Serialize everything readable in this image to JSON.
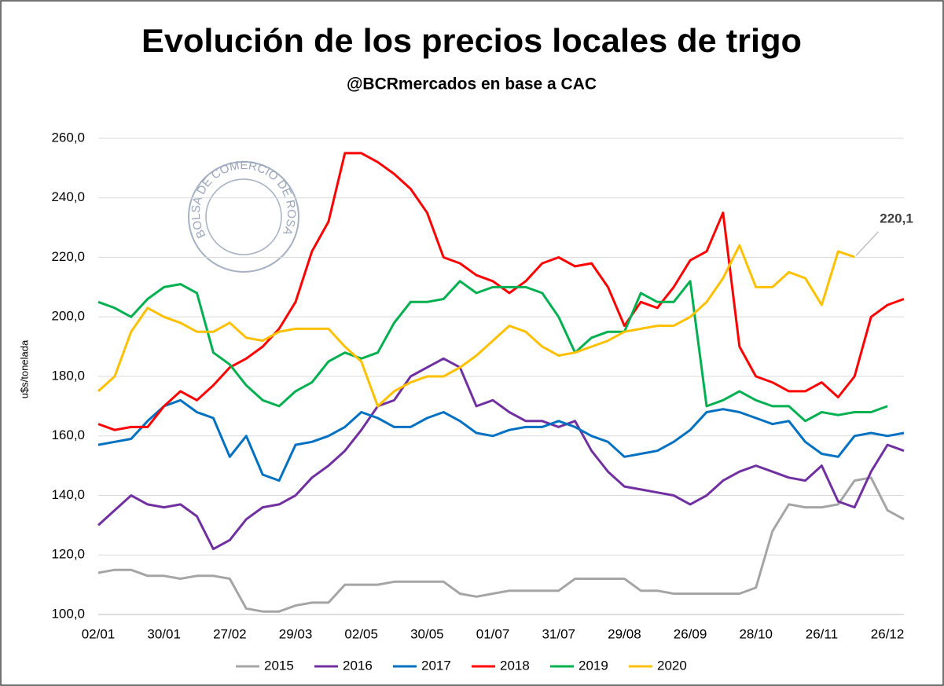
{
  "chart_data": {
    "type": "line",
    "title": "Evolución de los precios locales de trigo",
    "subtitle": "@BCRmercados en base a CAC",
    "y_label": "u$s/tonelada",
    "watermark": "BOLSA DE COMERCIO DE ROSARIO",
    "categories": [
      "02/01",
      null,
      null,
      null,
      "30/01",
      null,
      null,
      null,
      "27/02",
      null,
      null,
      null,
      "29/03",
      null,
      null,
      null,
      "02/05",
      null,
      null,
      null,
      "30/05",
      null,
      null,
      null,
      "01/07",
      null,
      null,
      null,
      "31/07",
      null,
      null,
      null,
      "29/08",
      null,
      null,
      null,
      "26/09",
      null,
      null,
      null,
      "28/10",
      null,
      null,
      null,
      "26/11",
      null,
      null,
      null,
      "26/12",
      null
    ],
    "ylim": [
      100,
      260
    ],
    "yticks": [
      {
        "value": 100,
        "label": "100,0"
      },
      {
        "value": 120,
        "label": "120,0"
      },
      {
        "value": 140,
        "label": "140,0"
      },
      {
        "value": 160,
        "label": "160,0"
      },
      {
        "value": 180,
        "label": "180,0"
      },
      {
        "value": 200,
        "label": "200,0"
      },
      {
        "value": 220,
        "label": "220,0"
      },
      {
        "value": 240,
        "label": "240,0"
      },
      {
        "value": 260,
        "label": "260,0"
      }
    ],
    "grid": true,
    "legend": "bottom",
    "series": [
      {
        "name": "2015",
        "color": "#a5a5a5",
        "values": [
          114,
          115,
          115,
          113,
          113,
          112,
          113,
          113,
          112,
          102,
          101,
          101,
          103,
          104,
          104,
          110,
          110,
          110,
          111,
          111,
          111,
          111,
          107,
          106,
          107,
          108,
          108,
          108,
          108,
          112,
          112,
          112,
          112,
          108,
          108,
          107,
          107,
          107,
          107,
          107,
          109,
          128,
          137,
          136,
          136,
          137,
          145,
          146,
          135,
          132
        ]
      },
      {
        "name": "2016",
        "color": "#7030a0",
        "values": [
          130,
          135,
          140,
          137,
          136,
          137,
          133,
          122,
          125,
          132,
          136,
          137,
          140,
          146,
          150,
          155,
          162,
          170,
          172,
          180,
          183,
          186,
          183,
          170,
          172,
          168,
          165,
          165,
          163,
          165,
          155,
          148,
          143,
          142,
          141,
          140,
          137,
          140,
          145,
          148,
          150,
          148,
          146,
          145,
          150,
          138,
          136,
          148,
          157,
          155
        ]
      },
      {
        "name": "2017",
        "color": "#0070c0",
        "values": [
          157,
          158,
          159,
          165,
          170,
          172,
          168,
          166,
          153,
          160,
          147,
          145,
          157,
          158,
          160,
          163,
          168,
          166,
          163,
          163,
          166,
          168,
          165,
          161,
          160,
          162,
          163,
          163,
          165,
          163,
          160,
          158,
          153,
          154,
          155,
          158,
          162,
          168,
          169,
          168,
          166,
          164,
          165,
          158,
          154,
          153,
          160,
          161,
          160,
          161
        ]
      },
      {
        "name": "2018",
        "color": "#ff0000",
        "values": [
          164,
          162,
          163,
          163,
          170,
          175,
          172,
          177,
          183,
          186,
          190,
          196,
          205,
          222,
          232,
          255,
          255,
          252,
          248,
          243,
          235,
          220,
          218,
          214,
          212,
          208,
          212,
          218,
          220,
          217,
          218,
          210,
          197,
          205,
          203,
          210,
          219,
          222,
          235,
          190,
          180,
          178,
          175,
          175,
          178,
          173,
          180,
          200,
          204,
          206
        ]
      },
      {
        "name": "2019",
        "color": "#00b050",
        "values": [
          205,
          203,
          200,
          206,
          210,
          211,
          208,
          188,
          184,
          177,
          172,
          170,
          175,
          178,
          185,
          188,
          186,
          188,
          198,
          205,
          205,
          206,
          212,
          208,
          210,
          210,
          210,
          208,
          200,
          188,
          193,
          195,
          195,
          208,
          205,
          205,
          212,
          170,
          172,
          175,
          172,
          170,
          170,
          165,
          168,
          167,
          168,
          168,
          170,
          null
        ]
      },
      {
        "name": "2020",
        "color": "#ffc000",
        "values": [
          175,
          180,
          195,
          203,
          200,
          198,
          195,
          195,
          198,
          193,
          192,
          195,
          196,
          196,
          196,
          190,
          185,
          170,
          175,
          178,
          180,
          180,
          183,
          187,
          192,
          197,
          195,
          190,
          187,
          188,
          190,
          192,
          195,
          196,
          197,
          197,
          200,
          205,
          213,
          224,
          210,
          210,
          215,
          213,
          204,
          222,
          220.1,
          null,
          null,
          null
        ],
        "value_labels": [
          null,
          null,
          null,
          null,
          null,
          null,
          null,
          null,
          null,
          null,
          null,
          null,
          null,
          null,
          null,
          null,
          null,
          null,
          null,
          null,
          null,
          null,
          null,
          null,
          null,
          null,
          null,
          null,
          null,
          null,
          null,
          null,
          null,
          null,
          null,
          null,
          null,
          null,
          null,
          null,
          null,
          null,
          null,
          null,
          null,
          null,
          "220,1",
          null,
          null,
          null
        ]
      }
    ]
  }
}
